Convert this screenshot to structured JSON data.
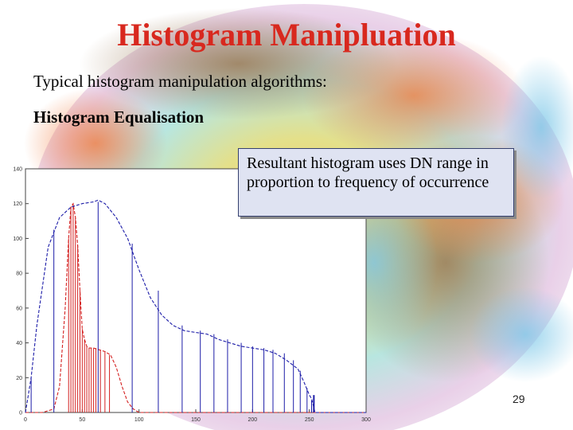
{
  "slide": {
    "title": "Histogram Manipluation",
    "subtitle": "Typical histogram manipulation algorithms:",
    "section_heading": "Histogram Equalisation",
    "callout_text": "Resultant histogram uses DN range in proportion to frequency of occurrence",
    "page_number": "29"
  },
  "colors": {
    "title": "#d8281e",
    "original_series": "#d42020",
    "equalised_series": "#1c1ca8",
    "callout_bg": "#dfe3f2"
  },
  "chart_data": {
    "type": "line",
    "xlim": [
      0,
      300
    ],
    "ylim": [
      0,
      140
    ],
    "x_ticks": [
      "0",
      "50",
      "100",
      "150",
      "200",
      "250",
      "300"
    ],
    "y_ticks": [
      "0",
      "20",
      "40",
      "60",
      "80",
      "100",
      "120",
      "140"
    ],
    "grid": false,
    "series": [
      {
        "style": "dashed-curve",
        "color": "#d42020",
        "x": [
          0,
          15,
          25,
          30,
          35,
          38,
          40,
          42,
          44,
          46,
          48,
          50,
          52,
          54,
          56,
          58,
          60,
          65,
          70,
          75,
          80,
          85,
          90,
          95,
          100,
          110,
          300
        ],
        "y": [
          0,
          0,
          2,
          15,
          60,
          100,
          118,
          120,
          112,
          96,
          70,
          48,
          42,
          38,
          37,
          37,
          37,
          36,
          35,
          33,
          26,
          15,
          6,
          2,
          0,
          0,
          0
        ]
      },
      {
        "style": "spikes",
        "color": "#d42020",
        "x": [
          38,
          40,
          42,
          44,
          46,
          48,
          50,
          52,
          54,
          56,
          58,
          60,
          62,
          66,
          70,
          74
        ],
        "y": [
          100,
          118,
          120,
          112,
          96,
          70,
          48,
          42,
          38,
          37,
          37,
          37,
          37,
          36,
          35,
          33
        ]
      },
      {
        "style": "dashed-curve",
        "color": "#1c1ca8",
        "x": [
          0,
          5,
          10,
          20,
          30,
          40,
          50,
          60,
          64,
          70,
          80,
          90,
          100,
          110,
          120,
          130,
          140,
          150,
          160,
          170,
          180,
          190,
          200,
          210,
          220,
          230,
          240,
          245,
          250,
          252,
          255,
          300
        ],
        "y": [
          0,
          20,
          50,
          95,
          112,
          118,
          120,
          121,
          122,
          120,
          112,
          100,
          82,
          66,
          56,
          50,
          47,
          46,
          45,
          42,
          40,
          38,
          37,
          36,
          34,
          30,
          25,
          18,
          10,
          8,
          0,
          0
        ],
        "extra_point": [
          254,
          10
        ]
      },
      {
        "style": "spikes",
        "color": "#1c1ca8",
        "x": [
          5,
          25,
          64,
          94,
          117,
          138,
          154,
          166,
          178,
          190,
          200,
          210,
          218,
          228,
          236,
          242,
          248,
          252
        ],
        "y": [
          20,
          105,
          121,
          97,
          70,
          50,
          47,
          45,
          42,
          40,
          38,
          37,
          36,
          34,
          30,
          24,
          14,
          7
        ]
      }
    ]
  }
}
